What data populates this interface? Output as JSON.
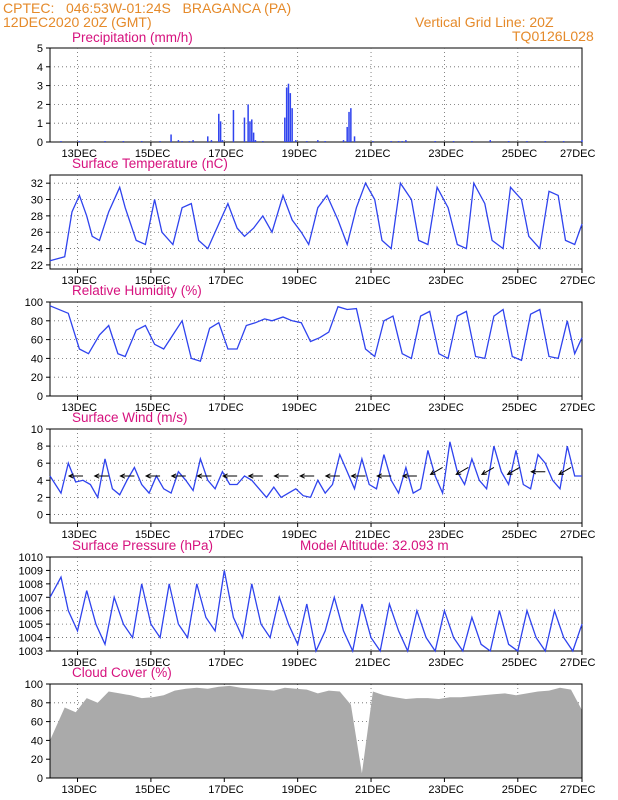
{
  "header": {
    "line1": "CPTEC:   046:53W-01:24S   BRAGANCA (PA)",
    "line2": "12DEC2020 20Z (GMT)",
    "grid_note": "Vertical Grid Line: 20Z",
    "code": "TQ0126L028"
  },
  "x_ticks": [
    "13DEC",
    "15DEC",
    "17DEC",
    "19DEC",
    "21DEC",
    "23DEC",
    "25DEC",
    "27DEC"
  ],
  "colors": {
    "line": "#2f43ee",
    "bar": "#2f43ee",
    "cloud": "#aaaaaa",
    "title": "#d6127e",
    "header": "#e58a2a"
  },
  "chart_data": [
    {
      "type": "bar",
      "title": "Precipitation (mm/h)",
      "ylim": [
        0,
        5
      ],
      "yticks": [
        0,
        1,
        2,
        3,
        4,
        5
      ],
      "x_unit": "days since 12DEC2020 20Z",
      "x": [
        0.3,
        0.8,
        1.5,
        2.0,
        2.5,
        3.0,
        3.3,
        3.5,
        3.6,
        3.8,
        3.9,
        4.3,
        4.4,
        4.6,
        4.65,
        4.7,
        5.0,
        5.3,
        5.4,
        5.45,
        5.5,
        5.55,
        5.6,
        5.8,
        6.4,
        6.45,
        6.5,
        6.55,
        6.6,
        6.7,
        7.0,
        7.3,
        7.5,
        8.0,
        8.1,
        8.15,
        8.2,
        8.3,
        8.8,
        9.3,
        9.5,
        9.6,
        9.7,
        10.5,
        11.0,
        11.5,
        12.0,
        12.5,
        13.0,
        13.5,
        14.0,
        14.5
      ],
      "values": [
        0.05,
        0.05,
        0.05,
        0.05,
        0.05,
        0.05,
        0.4,
        0.1,
        0.05,
        0.05,
        0.1,
        0.3,
        0.1,
        1.5,
        1.1,
        0.1,
        1.7,
        1.3,
        2.0,
        1.1,
        1.2,
        0.5,
        0.1,
        0.05,
        1.3,
        2.9,
        3.1,
        2.6,
        1.8,
        0.1,
        0.05,
        0.1,
        0.05,
        0.1,
        0.8,
        1.6,
        1.8,
        0.3,
        0.05,
        0.05,
        0.05,
        0.05,
        0.1,
        0.05,
        0.05,
        0.05,
        0.1,
        0.05,
        0.05,
        0.05,
        0.05,
        0.1
      ]
    },
    {
      "type": "line",
      "title": "Surface Temperature (nC)",
      "ylim": [
        21.5,
        33
      ],
      "yticks": [
        22,
        24,
        26,
        28,
        30,
        32
      ],
      "x": [
        0,
        0.4,
        0.6,
        0.8,
        1.0,
        1.15,
        1.35,
        1.6,
        1.9,
        2.05,
        2.35,
        2.6,
        2.85,
        3.05,
        3.35,
        3.6,
        3.85,
        4.05,
        4.3,
        4.55,
        4.85,
        5.1,
        5.3,
        5.55,
        5.8,
        6.05,
        6.35,
        6.6,
        6.85,
        7.05,
        7.3,
        7.55,
        7.85,
        8.1,
        8.35,
        8.6,
        8.85,
        9.05,
        9.3,
        9.55,
        9.85,
        10.05,
        10.3,
        10.55,
        10.85,
        11.1,
        11.35,
        11.55,
        11.85,
        12.05,
        12.35,
        12.55,
        12.85,
        13.05,
        13.35,
        13.6,
        13.85,
        14.05,
        14.3,
        14.5
      ],
      "values": [
        22.5,
        23.0,
        28.5,
        30.5,
        28.0,
        25.5,
        25.0,
        28.5,
        31.5,
        29.0,
        25.0,
        24.5,
        30.0,
        26.0,
        24.5,
        29.0,
        29.5,
        25.0,
        24.0,
        26.5,
        29.5,
        26.5,
        25.5,
        26.5,
        28.0,
        26.0,
        30.5,
        27.5,
        26.0,
        24.5,
        29.0,
        30.5,
        27.5,
        24.5,
        29.0,
        32.0,
        30.0,
        25.0,
        24.0,
        32.0,
        30.0,
        25.0,
        24.5,
        31.5,
        29.0,
        24.5,
        24.0,
        32.0,
        29.5,
        25.0,
        24.0,
        31.5,
        30.0,
        25.5,
        24.0,
        31.0,
        30.5,
        25.0,
        24.5,
        27.0
      ]
    },
    {
      "type": "line",
      "title": "Relative Humidity (%)",
      "ylim": [
        0,
        100
      ],
      "yticks": [
        0,
        20,
        40,
        60,
        80,
        100
      ],
      "x": [
        0,
        0.5,
        0.8,
        1.05,
        1.35,
        1.6,
        1.85,
        2.05,
        2.35,
        2.6,
        2.85,
        3.1,
        3.35,
        3.6,
        3.85,
        4.1,
        4.35,
        4.6,
        4.85,
        5.1,
        5.35,
        5.6,
        5.85,
        6.05,
        6.35,
        6.6,
        6.85,
        7.1,
        7.35,
        7.6,
        7.85,
        8.1,
        8.35,
        8.6,
        8.85,
        9.1,
        9.35,
        9.6,
        9.85,
        10.1,
        10.35,
        10.6,
        10.85,
        11.1,
        11.35,
        11.6,
        11.85,
        12.1,
        12.35,
        12.6,
        12.85,
        13.1,
        13.35,
        13.6,
        13.85,
        14.1,
        14.3,
        14.5
      ],
      "values": [
        96,
        88,
        50,
        45,
        65,
        75,
        45,
        42,
        70,
        75,
        55,
        50,
        65,
        80,
        40,
        37,
        72,
        78,
        50,
        50,
        75,
        78,
        82,
        80,
        84,
        80,
        78,
        58,
        62,
        68,
        95,
        92,
        93,
        50,
        42,
        80,
        85,
        45,
        40,
        85,
        90,
        45,
        40,
        85,
        90,
        42,
        40,
        85,
        92,
        42,
        38,
        87,
        92,
        42,
        40,
        80,
        45,
        62
      ]
    },
    {
      "type": "line",
      "title": "Surface Wind (m/s)",
      "ylim": [
        -1,
        10
      ],
      "yticks": [
        0,
        2,
        4,
        6,
        8,
        10
      ],
      "x": [
        0,
        0.3,
        0.5,
        0.7,
        0.9,
        1.1,
        1.3,
        1.5,
        1.7,
        1.9,
        2.1,
        2.3,
        2.5,
        2.7,
        2.9,
        3.1,
        3.3,
        3.5,
        3.7,
        3.9,
        4.1,
        4.3,
        4.5,
        4.7,
        4.9,
        5.1,
        5.3,
        5.5,
        5.7,
        5.9,
        6.1,
        6.3,
        6.5,
        6.7,
        6.9,
        7.1,
        7.3,
        7.5,
        7.7,
        7.9,
        8.1,
        8.3,
        8.5,
        8.7,
        8.9,
        9.1,
        9.3,
        9.5,
        9.7,
        9.9,
        10.1,
        10.3,
        10.5,
        10.7,
        10.9,
        11.1,
        11.3,
        11.5,
        11.7,
        11.9,
        12.1,
        12.3,
        12.5,
        12.7,
        12.9,
        13.1,
        13.3,
        13.5,
        13.7,
        13.9,
        14.1,
        14.3,
        14.5
      ],
      "values": [
        4.5,
        2.5,
        6.0,
        3.8,
        4.0,
        3.5,
        2.0,
        6.5,
        3.0,
        2.3,
        4.0,
        5.5,
        3.5,
        2.5,
        4.5,
        3.0,
        2.5,
        5.0,
        4.0,
        2.8,
        6.5,
        4.0,
        3.0,
        5.0,
        3.5,
        3.5,
        4.5,
        4.0,
        3.0,
        2.0,
        3.2,
        2.0,
        2.5,
        3.0,
        2.2,
        2.0,
        4.0,
        2.5,
        3.5,
        7.0,
        5.0,
        3.0,
        6.5,
        3.5,
        3.0,
        7.0,
        4.0,
        2.5,
        5.5,
        2.5,
        3.0,
        7.5,
        4.5,
        2.5,
        8.5,
        5.0,
        3.5,
        6.5,
        4.0,
        3.0,
        8.0,
        5.0,
        3.5,
        7.5,
        3.5,
        3.0,
        7.0,
        6.0,
        4.0,
        3.0,
        8.0,
        4.5,
        4.5
      ],
      "wind_barbs": [
        {
          "x": 0.9,
          "dir": "W",
          "speed": 4.5
        },
        {
          "x": 1.6,
          "dir": "W",
          "speed": 4.5
        },
        {
          "x": 2.3,
          "dir": "W",
          "speed": 4.5
        },
        {
          "x": 3.0,
          "dir": "W",
          "speed": 4.5
        },
        {
          "x": 3.7,
          "dir": "W",
          "speed": 4.5
        },
        {
          "x": 4.4,
          "dir": "W",
          "speed": 4.5
        },
        {
          "x": 5.1,
          "dir": "W",
          "speed": 4.5
        },
        {
          "x": 5.8,
          "dir": "W",
          "speed": 4.5
        },
        {
          "x": 6.5,
          "dir": "W",
          "speed": 4.5
        },
        {
          "x": 7.2,
          "dir": "W",
          "speed": 4.5
        },
        {
          "x": 7.9,
          "dir": "W",
          "speed": 4.5
        },
        {
          "x": 8.6,
          "dir": "W",
          "speed": 4.5
        },
        {
          "x": 9.3,
          "dir": "W",
          "speed": 4.5
        },
        {
          "x": 10.0,
          "dir": "W",
          "speed": 4.5
        },
        {
          "x": 10.7,
          "dir": "SW",
          "speed": 5.5
        },
        {
          "x": 11.4,
          "dir": "SW",
          "speed": 5.5
        },
        {
          "x": 12.1,
          "dir": "SW",
          "speed": 5.5
        },
        {
          "x": 12.8,
          "dir": "SW",
          "speed": 5.5
        },
        {
          "x": 13.5,
          "dir": "W",
          "speed": 5.0
        },
        {
          "x": 14.2,
          "dir": "SW",
          "speed": 5.5
        }
      ]
    },
    {
      "type": "line",
      "title": "Surface Pressure (hPa)",
      "annotation": "Model Altitude: 32.093 m",
      "ylim": [
        1003,
        1010
      ],
      "yticks": [
        1003,
        1004,
        1005,
        1006,
        1007,
        1008,
        1009,
        1010
      ],
      "x": [
        0,
        0.3,
        0.5,
        0.75,
        1.0,
        1.25,
        1.5,
        1.75,
        2.0,
        2.25,
        2.5,
        2.75,
        3.0,
        3.25,
        3.5,
        3.75,
        4.0,
        4.25,
        4.5,
        4.75,
        5.0,
        5.25,
        5.5,
        5.75,
        6.0,
        6.25,
        6.5,
        6.75,
        7.0,
        7.25,
        7.5,
        7.75,
        8.0,
        8.25,
        8.5,
        8.75,
        9.0,
        9.25,
        9.5,
        9.75,
        10.0,
        10.25,
        10.5,
        10.75,
        11.0,
        11.25,
        11.5,
        11.75,
        12.0,
        12.25,
        12.5,
        12.75,
        13.0,
        13.25,
        13.5,
        13.75,
        14.0,
        14.25,
        14.5
      ],
      "values": [
        1007,
        1008.5,
        1006,
        1004.5,
        1007.5,
        1005,
        1003.5,
        1007,
        1005,
        1004,
        1008,
        1005,
        1004,
        1008,
        1005,
        1004,
        1008,
        1005.5,
        1004.5,
        1009,
        1005.5,
        1004,
        1008,
        1005,
        1004,
        1007,
        1005,
        1003.5,
        1006.5,
        1003,
        1004.5,
        1007,
        1004.5,
        1003,
        1006.5,
        1004,
        1003,
        1006.5,
        1004.5,
        1003,
        1006,
        1004,
        1003,
        1006,
        1004,
        1003,
        1005.5,
        1003.5,
        1003,
        1006,
        1003.5,
        1003,
        1006,
        1004,
        1003,
        1006,
        1004,
        1003,
        1005
      ]
    },
    {
      "type": "area",
      "title": "Cloud Cover (%)",
      "ylim": [
        0,
        100
      ],
      "yticks": [
        0,
        20,
        40,
        60,
        80,
        100
      ],
      "x": [
        0,
        0.4,
        0.7,
        1.0,
        1.3,
        1.6,
        1.9,
        2.2,
        2.5,
        2.8,
        3.1,
        3.4,
        3.7,
        4.0,
        4.3,
        4.6,
        4.9,
        5.2,
        5.5,
        5.8,
        6.1,
        6.4,
        6.7,
        7.0,
        7.3,
        7.6,
        7.9,
        8.2,
        8.5,
        8.8,
        9.1,
        9.4,
        9.7,
        10.0,
        10.3,
        10.6,
        10.9,
        11.2,
        11.5,
        11.8,
        12.1,
        12.4,
        12.7,
        13.0,
        13.3,
        13.6,
        13.9,
        14.2,
        14.5
      ],
      "values": [
        40,
        75,
        70,
        85,
        80,
        92,
        90,
        88,
        85,
        86,
        88,
        93,
        95,
        96,
        95,
        97,
        98,
        96,
        95,
        94,
        93,
        96,
        95,
        94,
        90,
        93,
        92,
        78,
        5,
        92,
        88,
        86,
        84,
        85,
        85,
        84,
        86,
        86,
        87,
        88,
        89,
        90,
        88,
        90,
        92,
        93,
        96,
        94,
        72
      ]
    }
  ]
}
